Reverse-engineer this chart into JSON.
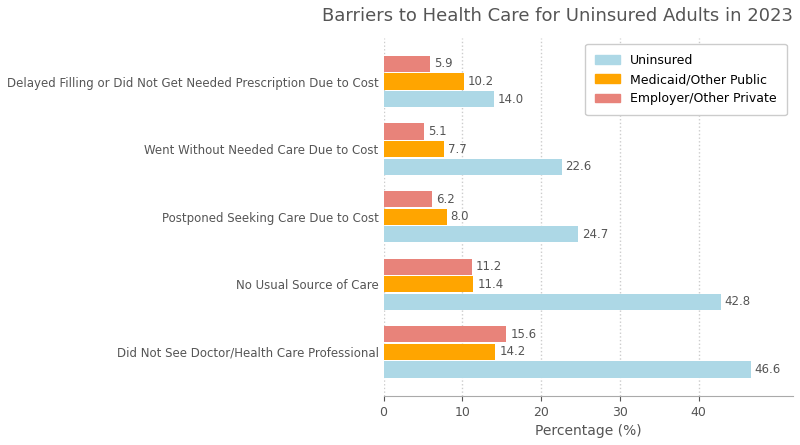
{
  "title": "Barriers to Health Care for Uninsured Adults in 2023",
  "xlabel": "Percentage (%)",
  "categories": [
    "Did Not See Doctor/Health Care Professional",
    "No Usual Source of Care",
    "Postponed Seeking Care Due to Cost",
    "Went Without Needed Care Due to Cost",
    "Delayed Filling or Did Not Get Needed Prescription Due to Cost"
  ],
  "series": {
    "Uninsured": [
      46.6,
      42.8,
      24.7,
      22.6,
      14.0
    ],
    "Medicaid/Other Public": [
      14.2,
      11.4,
      8.0,
      7.7,
      10.2
    ],
    "Employer/Other Private": [
      15.6,
      11.2,
      6.2,
      5.1,
      5.9
    ]
  },
  "colors": {
    "Uninsured": "#ADD8E6",
    "Medicaid/Other Public": "#FFA500",
    "Employer/Other Private": "#E8837A"
  },
  "bar_height": 0.24,
  "bar_gap": 0.02,
  "xlim": [
    0,
    52
  ],
  "xticks": [
    0,
    10,
    20,
    30,
    40
  ],
  "label_fontsize": 8.5,
  "title_fontsize": 13,
  "axis_label_fontsize": 10,
  "tick_fontsize": 9,
  "legend_fontsize": 9,
  "text_color": "#555555",
  "grid_color": "#cccccc",
  "background_color": "#ffffff"
}
